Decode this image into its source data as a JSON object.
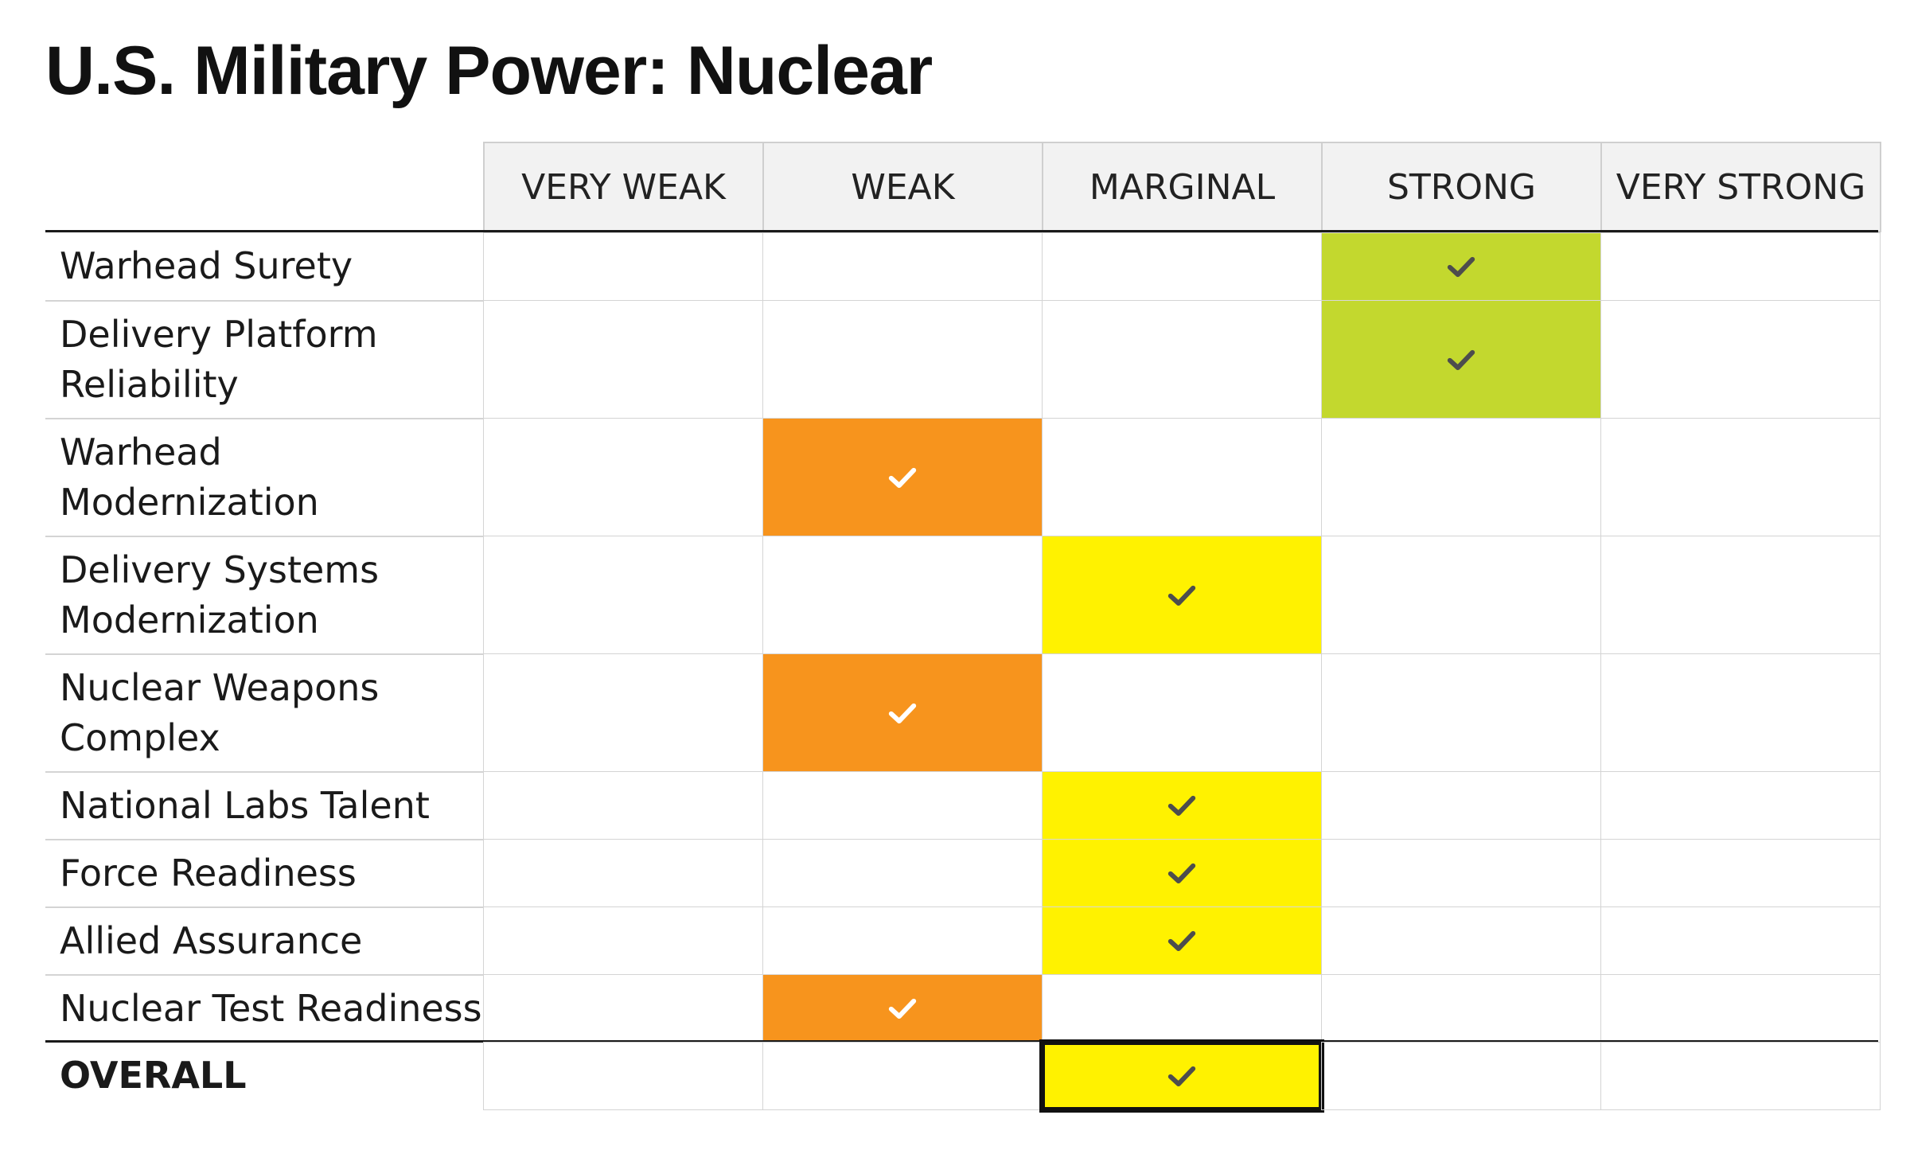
{
  "chart_data": {
    "type": "table",
    "title": "U.S. Military Power: Nuclear",
    "columns": [
      "VERY WEAK",
      "WEAK",
      "MARGINAL",
      "STRONG",
      "VERY STRONG"
    ],
    "rows": [
      {
        "label": "Warhead Surety",
        "rating": "STRONG"
      },
      {
        "label": "Delivery Platform Reliability",
        "rating": "STRONG"
      },
      {
        "label": "Warhead Modernization",
        "rating": "WEAK"
      },
      {
        "label": "Delivery Systems Modernization",
        "rating": "MARGINAL"
      },
      {
        "label": "Nuclear Weapons Complex",
        "rating": "WEAK"
      },
      {
        "label": "National Labs Talent",
        "rating": "MARGINAL"
      },
      {
        "label": "Force Readiness",
        "rating": "MARGINAL"
      },
      {
        "label": "Allied Assurance",
        "rating": "MARGINAL"
      },
      {
        "label": "Nuclear Test Readiness",
        "rating": "WEAK"
      }
    ],
    "overall": {
      "label": "OVERALL",
      "rating": "MARGINAL"
    },
    "rating_colors": {
      "WEAK": "#f7941d",
      "MARGINAL": "#fff200",
      "STRONG": "#c3d82e"
    },
    "check_colors": {
      "WEAK": "#ffffff",
      "MARGINAL": "#4d4d4d",
      "STRONG": "#4d4d4d"
    },
    "check_icon": "check-icon"
  }
}
